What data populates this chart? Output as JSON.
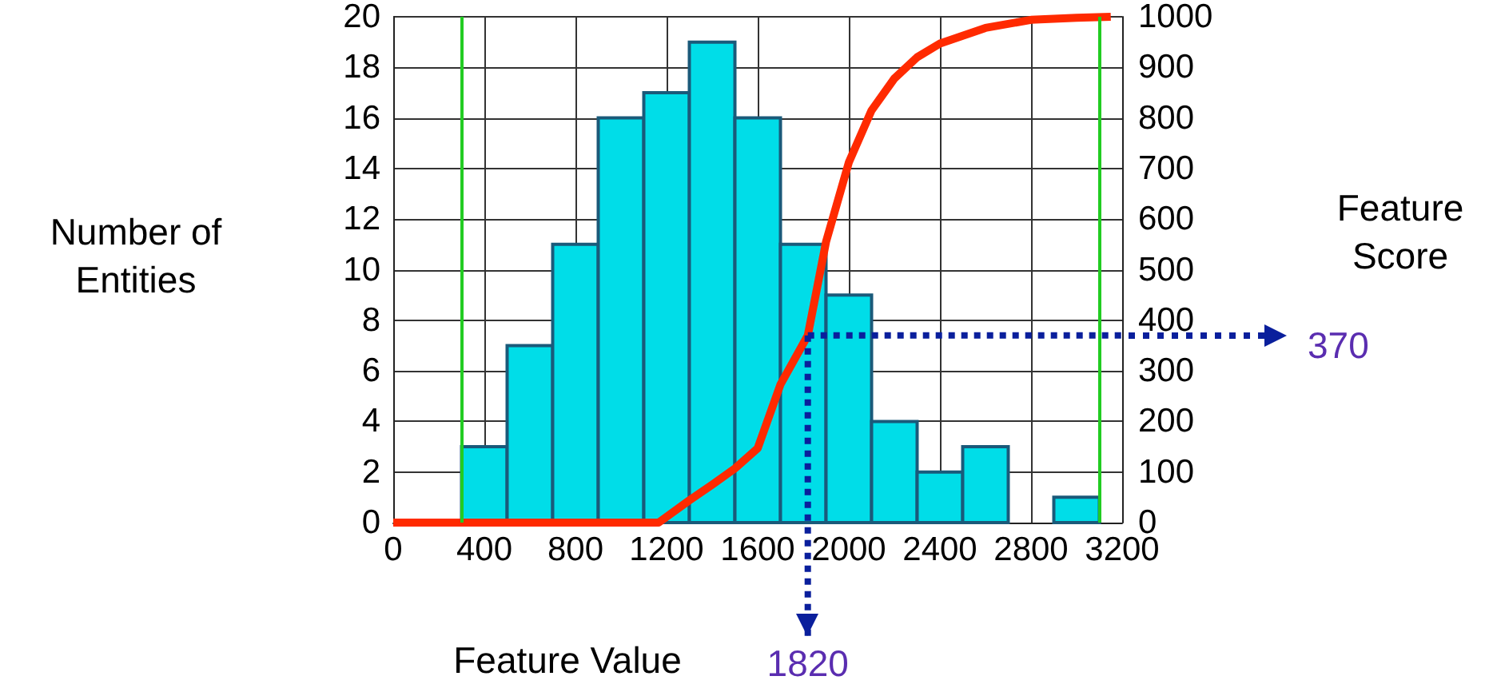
{
  "chart_data": {
    "type": "histogram",
    "xlabel": "Feature Value",
    "ylabel": "Number of\nEntities",
    "y2label": "Feature\nScore",
    "bins": [
      300,
      500,
      700,
      900,
      1100,
      1300,
      1500,
      1700,
      1900,
      2100,
      2300,
      2500,
      2700,
      2900,
      3100
    ],
    "values": [
      3,
      7,
      11,
      16,
      17,
      19,
      16,
      11,
      9,
      4,
      2,
      3,
      0,
      1
    ],
    "color": "#00dde8",
    "series": [
      {
        "type": "line",
        "axis": "y2",
        "color": "#ff2a00",
        "x": [
          0,
          1165,
          1300,
          1400,
          1500,
          1600,
          1700,
          1820,
          1900,
          2000,
          2100,
          2200,
          2300,
          2400,
          2600,
          2800,
          3000,
          3150
        ],
        "values": [
          0,
          0,
          44,
          75,
          107,
          147,
          273,
          370,
          555,
          712,
          815,
          878,
          920,
          947,
          978,
          994,
          998,
          1000
        ]
      }
    ],
    "xlim": [
      0,
      3200
    ],
    "xticks": [
      0,
      400,
      800,
      1200,
      1600,
      2000,
      2400,
      2800,
      3200
    ],
    "ylim": [
      0,
      20
    ],
    "yticks": [
      0,
      2,
      4,
      6,
      8,
      10,
      12,
      14,
      16,
      18,
      20
    ],
    "y2lim": [
      0,
      1000
    ],
    "y2ticks": [
      0,
      100,
      200,
      300,
      400,
      500,
      600,
      700,
      800,
      900,
      1000
    ],
    "ref_lines": [
      {
        "axis": "x",
        "value": 300,
        "color": "#22cc22"
      },
      {
        "axis": "x",
        "value": 3100,
        "color": "#22cc22"
      },
      {
        "axis": "x",
        "value": 1820,
        "label": "1820",
        "color": "#0a1f9c",
        "line_style": "dotted"
      },
      {
        "axis": "y2",
        "value": 370,
        "label": "370",
        "color": "#0a1f9c",
        "line_style": "dotted"
      }
    ],
    "grid": true,
    "marker": "none"
  }
}
